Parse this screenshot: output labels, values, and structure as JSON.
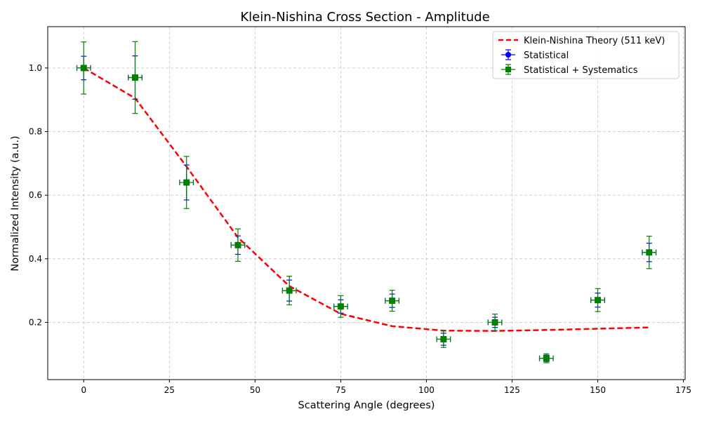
{
  "chart_data": {
    "type": "scatter",
    "title": "Klein-Nishina Cross Section - Amplitude",
    "xlabel": "Scattering Angle (degrees)",
    "ylabel": "Normalized Intensity (a.u.)",
    "xlim": [
      -10.5,
      175.5
    ],
    "ylim": [
      0.02,
      1.13
    ],
    "xticks": [
      0,
      25,
      50,
      75,
      100,
      125,
      150,
      175
    ],
    "yticks": [
      0.2,
      0.4,
      0.6,
      0.8,
      1.0
    ],
    "xtick_labels": [
      "0",
      "25",
      "50",
      "75",
      "100",
      "125",
      "150",
      "175"
    ],
    "ytick_labels": [
      "0.2",
      "0.4",
      "0.6",
      "0.8",
      "1.0"
    ],
    "grid": true,
    "legend_position": "top-right",
    "series": [
      {
        "name": "Klein-Nishina Theory (511 keV)",
        "kind": "line",
        "style": "dashed",
        "color": "#ff0000",
        "x": [
          0,
          15,
          30,
          45,
          60,
          75,
          90,
          105,
          120,
          135,
          150,
          165
        ],
        "y": [
          1.0,
          0.905,
          0.69,
          0.467,
          0.314,
          0.227,
          0.188,
          0.174,
          0.173,
          0.176,
          0.18,
          0.184
        ]
      },
      {
        "name": "Statistical",
        "kind": "errorbar",
        "color": "#0000ff",
        "x": [
          0,
          15,
          30,
          45,
          60,
          75,
          90,
          105,
          120,
          135,
          150,
          165
        ],
        "y": [
          1.0,
          0.97,
          0.64,
          0.443,
          0.3,
          0.25,
          0.268,
          0.147,
          0.2,
          0.087,
          0.27,
          0.42
        ],
        "xerr": [
          2,
          2,
          2,
          2,
          2,
          2,
          2,
          2,
          2,
          2,
          2,
          2
        ],
        "yerr": [
          0.037,
          0.068,
          0.055,
          0.029,
          0.033,
          0.021,
          0.021,
          0.019,
          0.016,
          0.01,
          0.022,
          0.029
        ]
      },
      {
        "name": "Statistical + Systematics",
        "kind": "errorbar",
        "color": "#008000",
        "x": [
          0,
          15,
          30,
          45,
          60,
          75,
          90,
          105,
          120,
          135,
          150,
          165
        ],
        "y": [
          1.0,
          0.97,
          0.64,
          0.443,
          0.3,
          0.25,
          0.268,
          0.147,
          0.2,
          0.087,
          0.27,
          0.42
        ],
        "xerr": [
          2,
          2,
          2,
          2,
          2,
          2,
          2,
          2,
          2,
          2,
          2,
          2
        ],
        "yerr": [
          0.082,
          0.113,
          0.082,
          0.051,
          0.045,
          0.034,
          0.033,
          0.026,
          0.026,
          0.014,
          0.036,
          0.051
        ]
      }
    ]
  }
}
